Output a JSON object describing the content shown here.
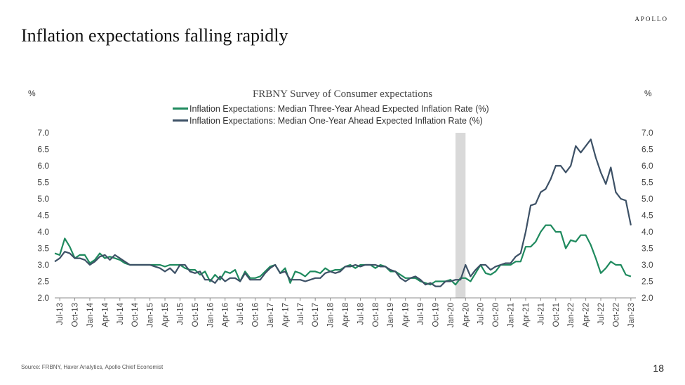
{
  "header": {
    "brand": "APOLLO",
    "title": "Inflation expectations falling rapidly"
  },
  "footer": {
    "source": "Source: FRBNY, Haver Analytics, Apollo Chief Economist",
    "page_number": "18"
  },
  "colors": {
    "three_year": "#1f8a5e",
    "one_year": "#3d5166",
    "recession_band": "#d9d9d9",
    "axis": "#8c8c8c"
  },
  "chart_data": {
    "type": "line",
    "title": "FRBNY Survey of Consumer expectations",
    "ylabel_left": "%",
    "ylabel_right": "%",
    "ylim": [
      2.0,
      7.0
    ],
    "yticks": [
      "7.0",
      "6.5",
      "6.0",
      "5.5",
      "5.0",
      "4.5",
      "4.0",
      "3.5",
      "3.0",
      "2.5",
      "2.0"
    ],
    "x_start": "2013-06",
    "x_end": "2023-02",
    "x_tick_labels": [
      "Jul-13",
      "Oct-13",
      "Jan-14",
      "Apr-14",
      "Jul-14",
      "Oct-14",
      "Jan-15",
      "Apr-15",
      "Jul-15",
      "Oct-15",
      "Jan-16",
      "Apr-16",
      "Jul-16",
      "Oct-16",
      "Jan-17",
      "Apr-17",
      "Jul-17",
      "Oct-17",
      "Jan-18",
      "Apr-18",
      "Jul-18",
      "Oct-18",
      "Jan-19",
      "Apr-19",
      "Jul-19",
      "Oct-19",
      "Jan-20",
      "Apr-20",
      "Jul-20",
      "Oct-20",
      "Jan-21",
      "Apr-21",
      "Jul-21",
      "Oct-21",
      "Jan-22",
      "Apr-22",
      "Jul-22",
      "Oct-22",
      "Jan-23"
    ],
    "recession_band": [
      "2020-02",
      "2020-04"
    ],
    "legend_position": "top-center",
    "grid": false,
    "series": [
      {
        "name": "Inflation Expectations: Median Three-Year Ahead Expected Inflation Rate (%)",
        "color": "#1f8a5e",
        "points": [
          [
            "2013-06",
            3.35
          ],
          [
            "2013-07",
            3.3
          ],
          [
            "2013-08",
            3.8
          ],
          [
            "2013-09",
            3.55
          ],
          [
            "2013-10",
            3.2
          ],
          [
            "2013-11",
            3.3
          ],
          [
            "2013-12",
            3.3
          ],
          [
            "2014-01",
            3.05
          ],
          [
            "2014-02",
            3.15
          ],
          [
            "2014-03",
            3.35
          ],
          [
            "2014-04",
            3.2
          ],
          [
            "2014-05",
            3.25
          ],
          [
            "2014-06",
            3.2
          ],
          [
            "2014-07",
            3.15
          ],
          [
            "2014-08",
            3.05
          ],
          [
            "2014-09",
            3.0
          ],
          [
            "2014-10",
            3.0
          ],
          [
            "2014-11",
            3.0
          ],
          [
            "2014-12",
            3.0
          ],
          [
            "2015-01",
            3.0
          ],
          [
            "2015-02",
            3.0
          ],
          [
            "2015-03",
            3.0
          ],
          [
            "2015-04",
            2.95
          ],
          [
            "2015-05",
            3.0
          ],
          [
            "2015-06",
            3.0
          ],
          [
            "2015-07",
            3.0
          ],
          [
            "2015-08",
            2.9
          ],
          [
            "2015-09",
            2.85
          ],
          [
            "2015-10",
            2.85
          ],
          [
            "2015-11",
            2.7
          ],
          [
            "2015-12",
            2.8
          ],
          [
            "2016-01",
            2.5
          ],
          [
            "2016-02",
            2.7
          ],
          [
            "2016-03",
            2.55
          ],
          [
            "2016-04",
            2.8
          ],
          [
            "2016-05",
            2.75
          ],
          [
            "2016-06",
            2.85
          ],
          [
            "2016-07",
            2.5
          ],
          [
            "2016-08",
            2.8
          ],
          [
            "2016-09",
            2.6
          ],
          [
            "2016-10",
            2.6
          ],
          [
            "2016-11",
            2.65
          ],
          [
            "2016-12",
            2.8
          ],
          [
            "2017-01",
            2.95
          ],
          [
            "2017-02",
            3.0
          ],
          [
            "2017-03",
            2.75
          ],
          [
            "2017-04",
            2.9
          ],
          [
            "2017-05",
            2.45
          ],
          [
            "2017-06",
            2.8
          ],
          [
            "2017-07",
            2.75
          ],
          [
            "2017-08",
            2.65
          ],
          [
            "2017-09",
            2.8
          ],
          [
            "2017-10",
            2.8
          ],
          [
            "2017-11",
            2.75
          ],
          [
            "2017-12",
            2.9
          ],
          [
            "2018-01",
            2.8
          ],
          [
            "2018-02",
            2.85
          ],
          [
            "2018-03",
            2.85
          ],
          [
            "2018-04",
            2.95
          ],
          [
            "2018-05",
            3.0
          ],
          [
            "2018-06",
            2.9
          ],
          [
            "2018-07",
            3.0
          ],
          [
            "2018-08",
            3.0
          ],
          [
            "2018-09",
            3.0
          ],
          [
            "2018-10",
            2.9
          ],
          [
            "2018-11",
            3.0
          ],
          [
            "2018-12",
            2.95
          ],
          [
            "2019-01",
            2.8
          ],
          [
            "2019-02",
            2.8
          ],
          [
            "2019-03",
            2.7
          ],
          [
            "2019-04",
            2.6
          ],
          [
            "2019-05",
            2.6
          ],
          [
            "2019-06",
            2.6
          ],
          [
            "2019-07",
            2.5
          ],
          [
            "2019-08",
            2.45
          ],
          [
            "2019-09",
            2.4
          ],
          [
            "2019-10",
            2.5
          ],
          [
            "2019-11",
            2.5
          ],
          [
            "2019-12",
            2.5
          ],
          [
            "2020-01",
            2.55
          ],
          [
            "2020-02",
            2.4
          ],
          [
            "2020-03",
            2.6
          ],
          [
            "2020-04",
            2.6
          ],
          [
            "2020-05",
            2.5
          ],
          [
            "2020-06",
            2.75
          ],
          [
            "2020-07",
            3.0
          ],
          [
            "2020-08",
            2.75
          ],
          [
            "2020-09",
            2.7
          ],
          [
            "2020-10",
            2.8
          ],
          [
            "2020-11",
            3.0
          ],
          [
            "2020-12",
            3.0
          ],
          [
            "2021-01",
            3.0
          ],
          [
            "2021-02",
            3.1
          ],
          [
            "2021-03",
            3.1
          ],
          [
            "2021-04",
            3.55
          ],
          [
            "2021-05",
            3.55
          ],
          [
            "2021-06",
            3.7
          ],
          [
            "2021-07",
            4.0
          ],
          [
            "2021-08",
            4.2
          ],
          [
            "2021-09",
            4.2
          ],
          [
            "2021-10",
            4.0
          ],
          [
            "2021-11",
            4.0
          ],
          [
            "2021-12",
            3.5
          ],
          [
            "2022-01",
            3.75
          ],
          [
            "2022-02",
            3.7
          ],
          [
            "2022-03",
            3.9
          ],
          [
            "2022-04",
            3.9
          ],
          [
            "2022-05",
            3.6
          ],
          [
            "2022-06",
            3.2
          ],
          [
            "2022-07",
            2.75
          ],
          [
            "2022-08",
            2.9
          ],
          [
            "2022-09",
            3.1
          ],
          [
            "2022-10",
            3.0
          ],
          [
            "2022-11",
            3.0
          ],
          [
            "2022-12",
            2.7
          ],
          [
            "2023-01",
            2.65
          ]
        ]
      },
      {
        "name": "Inflation Expectations: Median One-Year Ahead Expected Inflation Rate (%)",
        "color": "#3d5166",
        "points": [
          [
            "2013-06",
            3.1
          ],
          [
            "2013-07",
            3.2
          ],
          [
            "2013-08",
            3.4
          ],
          [
            "2013-09",
            3.35
          ],
          [
            "2013-10",
            3.2
          ],
          [
            "2013-11",
            3.2
          ],
          [
            "2013-12",
            3.15
          ],
          [
            "2014-01",
            3.0
          ],
          [
            "2014-02",
            3.1
          ],
          [
            "2014-03",
            3.25
          ],
          [
            "2014-04",
            3.3
          ],
          [
            "2014-05",
            3.15
          ],
          [
            "2014-06",
            3.3
          ],
          [
            "2014-07",
            3.2
          ],
          [
            "2014-08",
            3.1
          ],
          [
            "2014-09",
            3.0
          ],
          [
            "2014-10",
            3.0
          ],
          [
            "2014-11",
            3.0
          ],
          [
            "2014-12",
            3.0
          ],
          [
            "2015-01",
            3.0
          ],
          [
            "2015-02",
            2.95
          ],
          [
            "2015-03",
            2.9
          ],
          [
            "2015-04",
            2.8
          ],
          [
            "2015-05",
            2.9
          ],
          [
            "2015-06",
            2.75
          ],
          [
            "2015-07",
            3.0
          ],
          [
            "2015-08",
            3.0
          ],
          [
            "2015-09",
            2.8
          ],
          [
            "2015-10",
            2.75
          ],
          [
            "2015-11",
            2.8
          ],
          [
            "2015-12",
            2.55
          ],
          [
            "2016-01",
            2.55
          ],
          [
            "2016-02",
            2.45
          ],
          [
            "2016-03",
            2.65
          ],
          [
            "2016-04",
            2.5
          ],
          [
            "2016-05",
            2.6
          ],
          [
            "2016-06",
            2.6
          ],
          [
            "2016-07",
            2.5
          ],
          [
            "2016-08",
            2.75
          ],
          [
            "2016-09",
            2.55
          ],
          [
            "2016-10",
            2.55
          ],
          [
            "2016-11",
            2.55
          ],
          [
            "2016-12",
            2.75
          ],
          [
            "2017-01",
            2.9
          ],
          [
            "2017-02",
            3.0
          ],
          [
            "2017-03",
            2.75
          ],
          [
            "2017-04",
            2.8
          ],
          [
            "2017-05",
            2.55
          ],
          [
            "2017-06",
            2.55
          ],
          [
            "2017-07",
            2.55
          ],
          [
            "2017-08",
            2.5
          ],
          [
            "2017-09",
            2.55
          ],
          [
            "2017-10",
            2.6
          ],
          [
            "2017-11",
            2.6
          ],
          [
            "2017-12",
            2.75
          ],
          [
            "2018-01",
            2.8
          ],
          [
            "2018-02",
            2.75
          ],
          [
            "2018-03",
            2.8
          ],
          [
            "2018-04",
            2.95
          ],
          [
            "2018-05",
            2.95
          ],
          [
            "2018-06",
            3.0
          ],
          [
            "2018-07",
            2.95
          ],
          [
            "2018-08",
            3.0
          ],
          [
            "2018-09",
            3.0
          ],
          [
            "2018-10",
            3.0
          ],
          [
            "2018-11",
            2.95
          ],
          [
            "2018-12",
            2.95
          ],
          [
            "2019-01",
            2.85
          ],
          [
            "2019-02",
            2.8
          ],
          [
            "2019-03",
            2.6
          ],
          [
            "2019-04",
            2.5
          ],
          [
            "2019-05",
            2.6
          ],
          [
            "2019-06",
            2.65
          ],
          [
            "2019-07",
            2.55
          ],
          [
            "2019-08",
            2.4
          ],
          [
            "2019-09",
            2.45
          ],
          [
            "2019-10",
            2.35
          ],
          [
            "2019-11",
            2.35
          ],
          [
            "2019-12",
            2.5
          ],
          [
            "2020-01",
            2.5
          ],
          [
            "2020-02",
            2.55
          ],
          [
            "2020-03",
            2.55
          ],
          [
            "2020-04",
            3.0
          ],
          [
            "2020-05",
            2.65
          ],
          [
            "2020-06",
            2.85
          ],
          [
            "2020-07",
            3.0
          ],
          [
            "2020-08",
            3.0
          ],
          [
            "2020-09",
            2.85
          ],
          [
            "2020-10",
            2.95
          ],
          [
            "2020-11",
            3.0
          ],
          [
            "2020-12",
            3.05
          ],
          [
            "2021-01",
            3.05
          ],
          [
            "2021-02",
            3.25
          ],
          [
            "2021-03",
            3.35
          ],
          [
            "2021-04",
            4.0
          ],
          [
            "2021-05",
            4.8
          ],
          [
            "2021-06",
            4.85
          ],
          [
            "2021-07",
            5.2
          ],
          [
            "2021-08",
            5.3
          ],
          [
            "2021-09",
            5.6
          ],
          [
            "2021-10",
            6.0
          ],
          [
            "2021-11",
            6.0
          ],
          [
            "2021-12",
            5.8
          ],
          [
            "2022-01",
            6.0
          ],
          [
            "2022-02",
            6.6
          ],
          [
            "2022-03",
            6.4
          ],
          [
            "2022-04",
            6.6
          ],
          [
            "2022-05",
            6.8
          ],
          [
            "2022-06",
            6.25
          ],
          [
            "2022-07",
            5.8
          ],
          [
            "2022-08",
            5.45
          ],
          [
            "2022-09",
            5.95
          ],
          [
            "2022-10",
            5.2
          ],
          [
            "2022-11",
            5.0
          ],
          [
            "2022-12",
            4.95
          ],
          [
            "2023-01",
            4.2
          ]
        ]
      }
    ]
  }
}
